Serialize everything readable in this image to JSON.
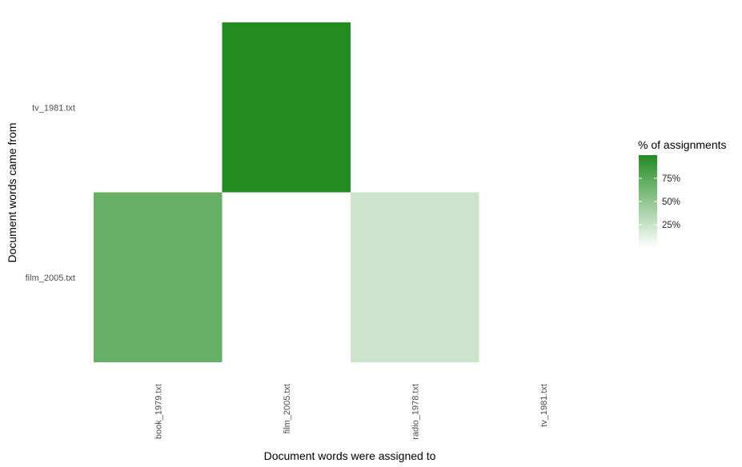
{
  "chart_data": {
    "type": "heatmap",
    "xlabel": "Document words were assigned to",
    "ylabel": "Document words came from",
    "x_categories": [
      "book_1979.txt",
      "film_2005.txt",
      "radio_1978.txt",
      "tv_1981.txt"
    ],
    "y_categories": [
      "film_2005.txt",
      "tv_1981.txt"
    ],
    "cells": [
      {
        "x": "book_1979.txt",
        "y": "film_2005.txt",
        "value": 69
      },
      {
        "x": "radio_1978.txt",
        "y": "film_2005.txt",
        "value": 23
      },
      {
        "x": "film_2005.txt",
        "y": "tv_1981.txt",
        "value": 100
      }
    ],
    "legend": {
      "title": "% of assignments",
      "ticks": [
        {
          "value": 25,
          "label": "25%"
        },
        {
          "value": 50,
          "label": "50%"
        },
        {
          "value": 75,
          "label": "75%"
        }
      ],
      "range": [
        0,
        100
      ],
      "low_color": "#ffffff",
      "high_color": "#228b22",
      "placement": "right"
    },
    "grid": false
  }
}
